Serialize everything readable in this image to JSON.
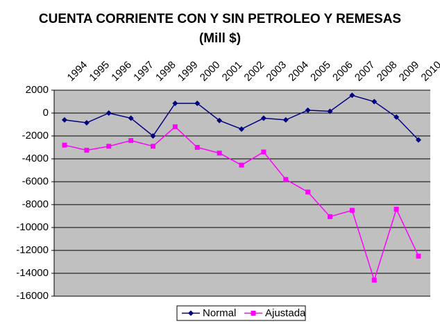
{
  "chart_data": {
    "type": "line",
    "title": "CUENTA CORRIENTE CON Y SIN PETROLEO Y REMESAS (Mill $)",
    "categories": [
      "1994",
      "1995",
      "1996",
      "1997",
      "1998",
      "1999",
      "2000",
      "2001",
      "2002",
      "2003",
      "2004",
      "2005",
      "2006",
      "2007",
      "2008",
      "2009",
      "2010"
    ],
    "series": [
      {
        "name": "Normal",
        "color": "#000080",
        "marker": "diamond",
        "values": [
          -600,
          -850,
          0,
          -450,
          -2000,
          850,
          850,
          -650,
          -1400,
          -450,
          -600,
          250,
          150,
          1550,
          1000,
          -350,
          -2350
        ]
      },
      {
        "name": "Ajustada",
        "color": "#ff00ff",
        "marker": "square",
        "values": [
          -2800,
          -3250,
          -2900,
          -2400,
          -2900,
          -1200,
          -3000,
          -3500,
          -4550,
          -3400,
          -5800,
          -6900,
          -9050,
          -8500,
          -14600,
          -8400,
          -12500
        ]
      }
    ],
    "ylim": [
      -16000,
      2000
    ],
    "yticks": [
      -16000,
      -14000,
      -12000,
      -10000,
      -8000,
      -6000,
      -4000,
      -2000,
      0,
      2000
    ],
    "grid": true,
    "legend": "bottom",
    "background": "#c0c0c0"
  }
}
